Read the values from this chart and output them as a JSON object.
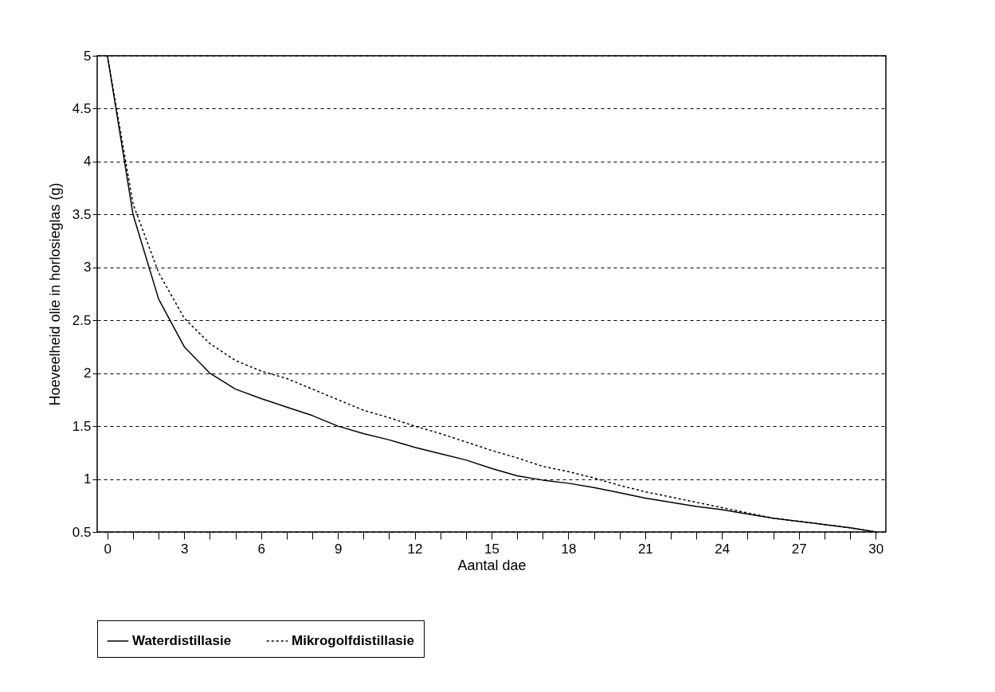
{
  "chart_data": {
    "type": "line",
    "xlabel": "Aantal dae",
    "ylabel": "Hoeveelheid olie in horlosieglas (g)",
    "x": [
      0,
      1,
      2,
      3,
      4,
      5,
      6,
      7,
      8,
      9,
      10,
      11,
      12,
      13,
      14,
      15,
      16,
      17,
      18,
      19,
      20,
      21,
      22,
      23,
      24,
      25,
      26,
      27,
      28,
      29,
      30
    ],
    "series": [
      {
        "name": "Waterdistillasie",
        "color": "#000000",
        "line_style": "solid",
        "values": [
          5,
          3.5,
          2.7,
          2.25,
          2.0,
          1.85,
          1.76,
          1.68,
          1.6,
          1.5,
          1.43,
          1.37,
          1.3,
          1.24,
          1.18,
          1.1,
          1.03,
          0.99,
          0.96,
          0.92,
          0.87,
          0.82,
          0.78,
          0.74,
          0.71,
          0.67,
          0.63,
          0.6,
          0.57,
          0.54,
          0.5
        ]
      },
      {
        "name": "Mikrogolfdistillasie",
        "color": "#000000",
        "line_style": "dotted",
        "values": [
          5,
          3.6,
          2.95,
          2.52,
          2.28,
          2.12,
          2.02,
          1.95,
          1.85,
          1.75,
          1.65,
          1.58,
          1.5,
          1.43,
          1.35,
          1.27,
          1.2,
          1.12,
          1.07,
          1.01,
          0.94,
          0.88,
          0.83,
          0.78,
          0.73,
          0.68,
          0.63,
          0.6,
          0.57,
          0.54,
          0.5
        ]
      }
    ],
    "xlim": [
      -0.4,
      30.4
    ],
    "xticks": [
      0,
      {
        "value": 1,
        "label": null
      },
      {
        "value": 2,
        "label": null
      },
      3,
      {
        "value": 4,
        "label": null
      },
      {
        "value": 5,
        "label": null
      },
      6,
      {
        "value": 7,
        "label": null
      },
      {
        "value": 8,
        "label": null
      },
      9,
      {
        "value": 10,
        "label": null
      },
      {
        "value": 11,
        "label": null
      },
      12,
      {
        "value": 13,
        "label": null
      },
      {
        "value": 14,
        "label": null
      },
      15,
      {
        "value": 16,
        "label": null
      },
      {
        "value": 17,
        "label": null
      },
      18,
      {
        "value": 19,
        "label": null
      },
      {
        "value": 20,
        "label": null
      },
      21,
      {
        "value": 22,
        "label": null
      },
      {
        "value": 23,
        "label": null
      },
      24,
      {
        "value": 25,
        "label": null
      },
      {
        "value": 26,
        "label": null
      },
      27,
      {
        "value": 28,
        "label": null
      },
      {
        "value": 29,
        "label": null
      },
      30
    ],
    "ylim": [
      0.5,
      5
    ],
    "yticks": [
      0.5,
      1,
      1.5,
      2,
      2.5,
      3,
      3.5,
      4,
      4.5,
      5
    ],
    "grid": "y",
    "legend": "bottom",
    "marker": "none"
  }
}
